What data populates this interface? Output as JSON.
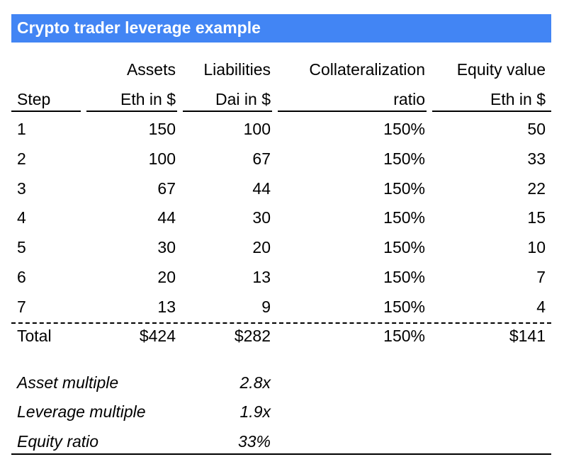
{
  "title": "Crypto trader leverage example",
  "headers": {
    "step": [
      "",
      "Step"
    ],
    "assets": [
      "Assets",
      "Eth in $"
    ],
    "liabilities": [
      "Liabilities",
      "Dai in $"
    ],
    "ratio": [
      "Collateralization",
      "ratio"
    ],
    "equity": [
      "Equity value",
      "Eth in $"
    ]
  },
  "rows": [
    {
      "step": "1",
      "assets": "150",
      "liabilities": "100",
      "ratio": "150%",
      "equity": "50"
    },
    {
      "step": "2",
      "assets": "100",
      "liabilities": "67",
      "ratio": "150%",
      "equity": "33"
    },
    {
      "step": "3",
      "assets": "67",
      "liabilities": "44",
      "ratio": "150%",
      "equity": "22"
    },
    {
      "step": "4",
      "assets": "44",
      "liabilities": "30",
      "ratio": "150%",
      "equity": "15"
    },
    {
      "step": "5",
      "assets": "30",
      "liabilities": "20",
      "ratio": "150%",
      "equity": "10"
    },
    {
      "step": "6",
      "assets": "20",
      "liabilities": "13",
      "ratio": "150%",
      "equity": "7"
    },
    {
      "step": "7",
      "assets": "13",
      "liabilities": "9",
      "ratio": "150%",
      "equity": "4"
    }
  ],
  "total": {
    "step": "Total",
    "assets": "$424",
    "liabilities": "$282",
    "ratio": "150%",
    "equity": "$141"
  },
  "metrics": [
    {
      "label": "Asset multiple",
      "value": "2.8x"
    },
    {
      "label": "Leverage multiple",
      "value": "1.9x"
    },
    {
      "label": "Equity ratio",
      "value": "33%"
    }
  ]
}
